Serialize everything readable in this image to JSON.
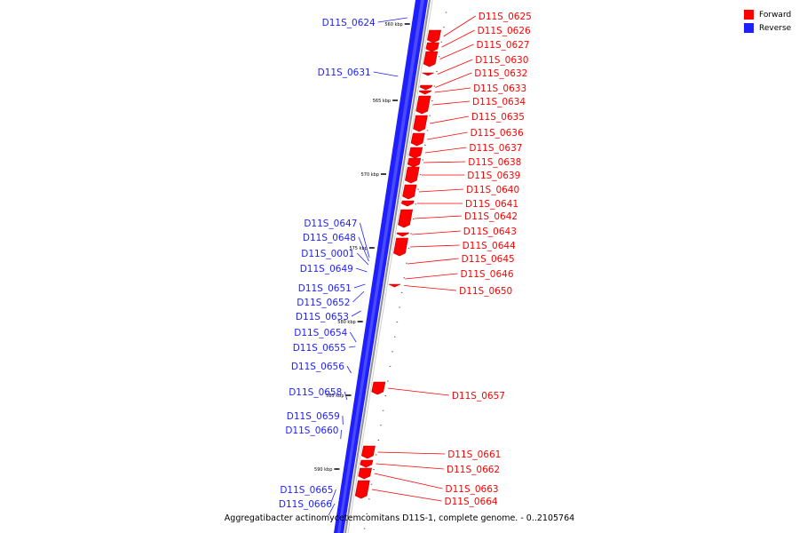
{
  "legend": {
    "forward_label": "Forward",
    "reverse_label": "Reverse",
    "forward_color": "#ff0000",
    "reverse_color": "#1e1eff"
  },
  "title": "Aggregatibacter actinomycetemcomitans D11S-1, complete genome. - 0..2105764",
  "ticks": [
    "560 kbp",
    "565 kbp",
    "570 kbp",
    "575 kbp",
    "580 kbp",
    "585 kbp",
    "590 kbp"
  ],
  "forward_genes": [
    "D11S_0625",
    "D11S_0626",
    "D11S_0627",
    "D11S_0630",
    "D11S_0632",
    "D11S_0633",
    "D11S_0634",
    "D11S_0635",
    "D11S_0636",
    "D11S_0637",
    "D11S_0638",
    "D11S_0639",
    "D11S_0640",
    "D11S_0641",
    "D11S_0642",
    "D11S_0643",
    "D11S_0644",
    "D11S_0645",
    "D11S_0646",
    "D11S_0650",
    "D11S_0657",
    "D11S_0661",
    "D11S_0662",
    "D11S_0663",
    "D11S_0664"
  ],
  "reverse_genes": [
    "D11S_0624",
    "D11S_0631",
    "D11S_0647",
    "D11S_0648",
    "D11S_0001",
    "D11S_0649",
    "D11S_0651",
    "D11S_0652",
    "D11S_0653",
    "D11S_0654",
    "D11S_0655",
    "D11S_0656",
    "D11S_0658",
    "D11S_0659",
    "D11S_0660",
    "D11S_0665",
    "D11S_0666"
  ]
}
